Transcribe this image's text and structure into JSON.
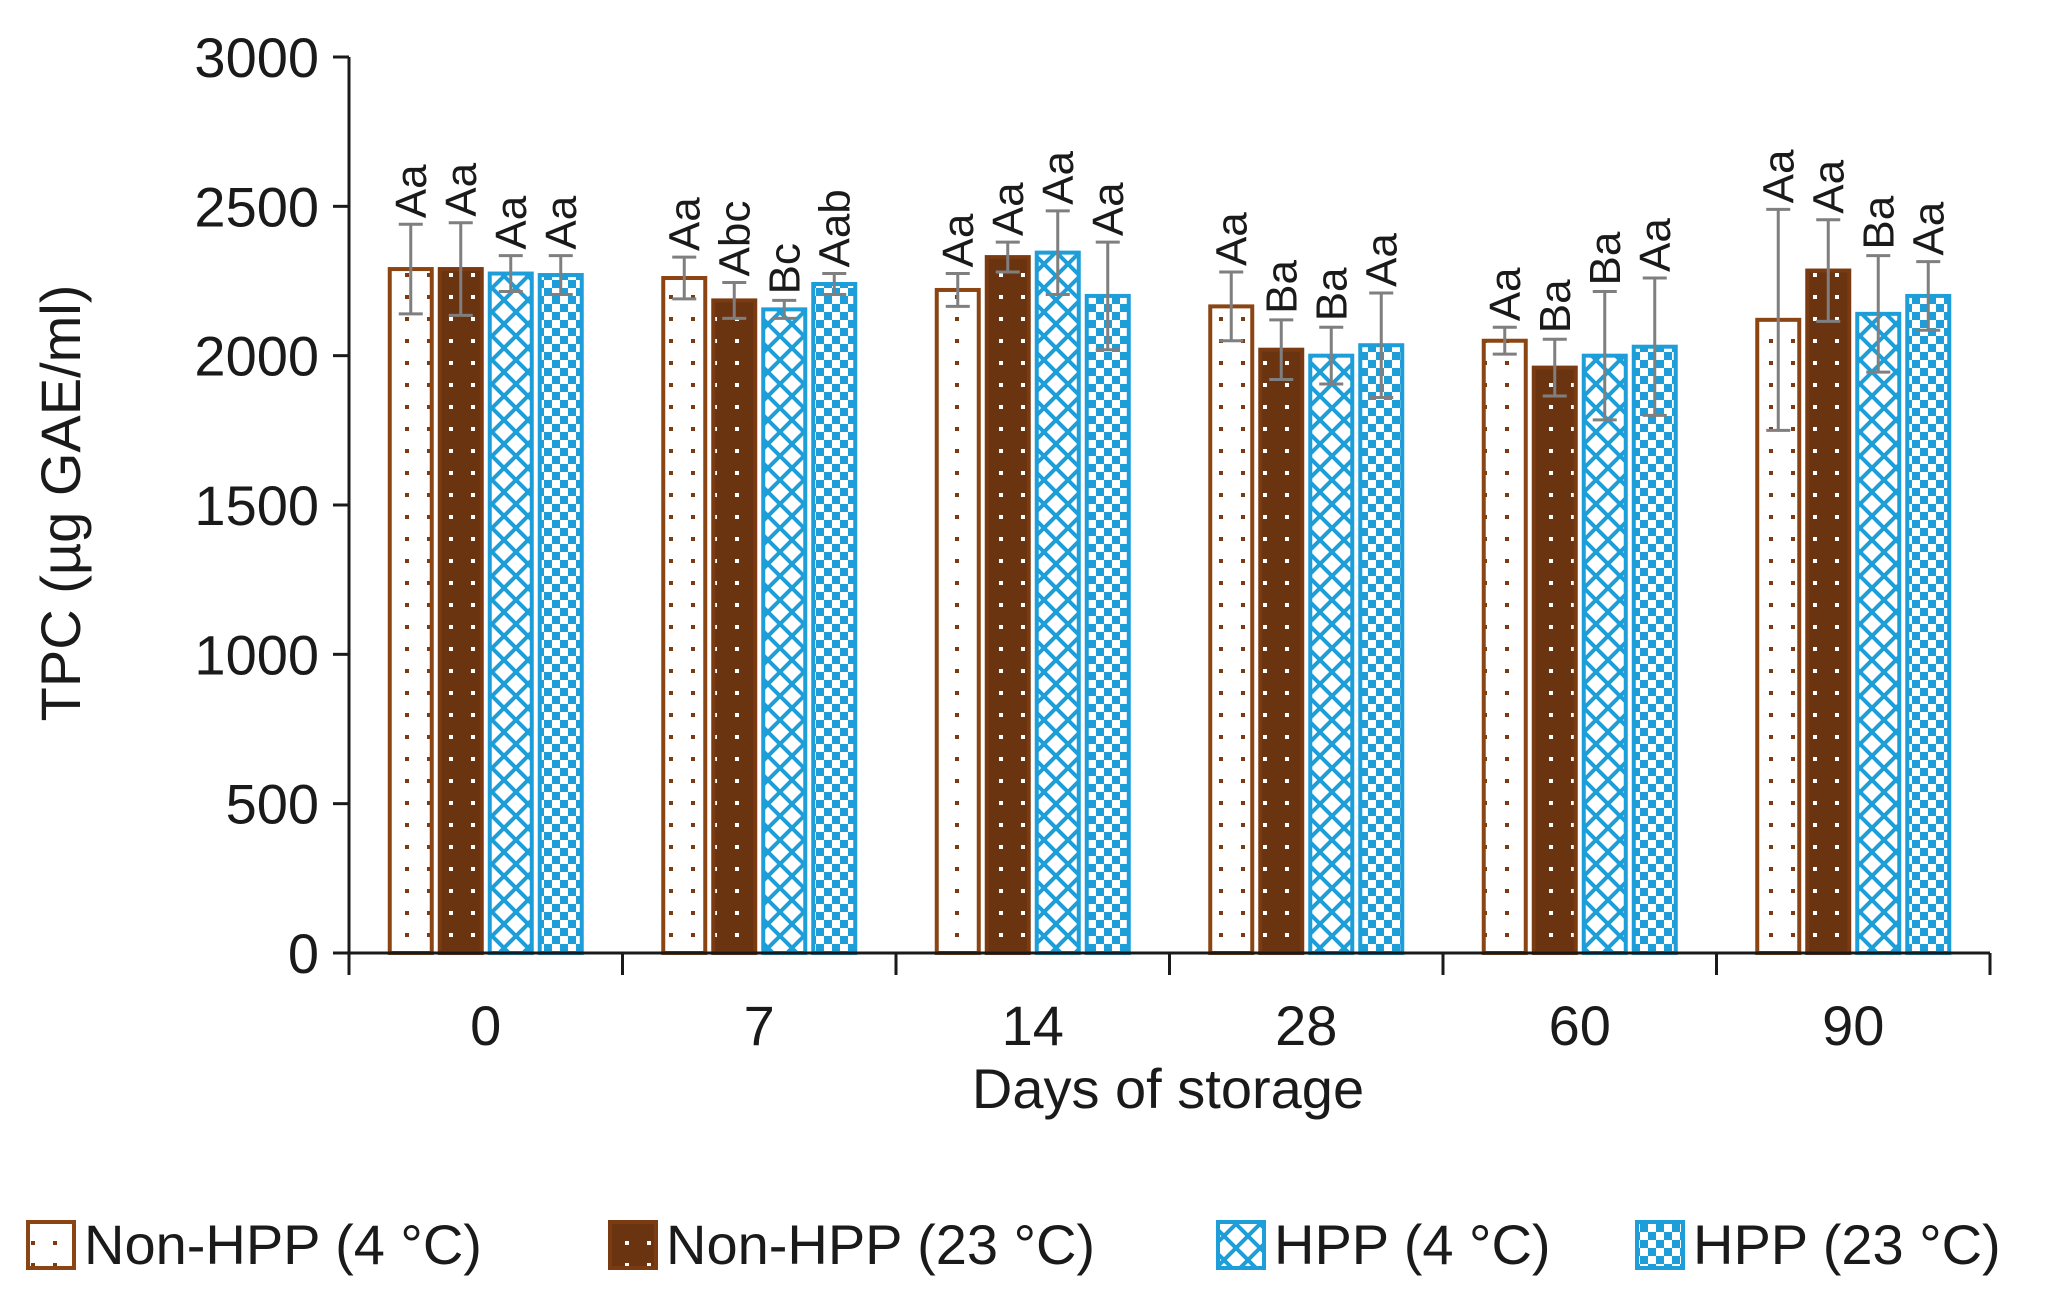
{
  "chart_data": {
    "type": "bar",
    "title": "",
    "xlabel": "Days of storage",
    "ylabel": "TPC (µg GAE/ml)",
    "ylim": [
      0,
      3000
    ],
    "yticks": [
      "0",
      "500",
      "1000",
      "1500",
      "2000",
      "2500",
      "3000"
    ],
    "ytick_values": [
      0,
      500,
      1000,
      1500,
      2000,
      2500,
      3000
    ],
    "categories": [
      "0",
      "7",
      "14",
      "28",
      "60",
      "90"
    ],
    "legend_position": "bottom",
    "series": [
      {
        "name": "Non-HPP (4 °C)",
        "pattern": "dots-sparse",
        "color": "#8B4513",
        "values": [
          2290,
          2260,
          2220,
          2165,
          2050,
          2120
        ],
        "errors": [
          150,
          70,
          55,
          115,
          45,
          370
        ],
        "labels": [
          "Aa",
          "Aa",
          "Aa",
          "Aa",
          "Aa",
          "Aa"
        ]
      },
      {
        "name": "Non-HPP (23 °C)",
        "pattern": "dots-dense",
        "color": "#7A3A12",
        "values": [
          2290,
          2185,
          2330,
          2020,
          1960,
          2285
        ],
        "errors": [
          155,
          60,
          50,
          100,
          95,
          170
        ],
        "labels": [
          "Aa",
          "Abc",
          "Aa",
          "Ba",
          "Ba",
          "Aa"
        ]
      },
      {
        "name": "HPP (4 °C)",
        "pattern": "diamond",
        "color": "#1E9ED8",
        "values": [
          2275,
          2155,
          2345,
          2000,
          2000,
          2140
        ],
        "errors": [
          60,
          30,
          140,
          95,
          215,
          195
        ],
        "labels": [
          "Aa",
          "Bc",
          "Aa",
          "Ba",
          "Ba",
          "Ba"
        ]
      },
      {
        "name": "HPP (23 °C)",
        "pattern": "checker",
        "color": "#1E9ED8",
        "values": [
          2270,
          2240,
          2200,
          2035,
          2030,
          2200
        ],
        "errors": [
          65,
          35,
          180,
          175,
          230,
          115
        ],
        "labels": [
          "Aa",
          "Aab",
          "Aa",
          "Aa",
          "Aa",
          "Aa"
        ]
      }
    ]
  }
}
